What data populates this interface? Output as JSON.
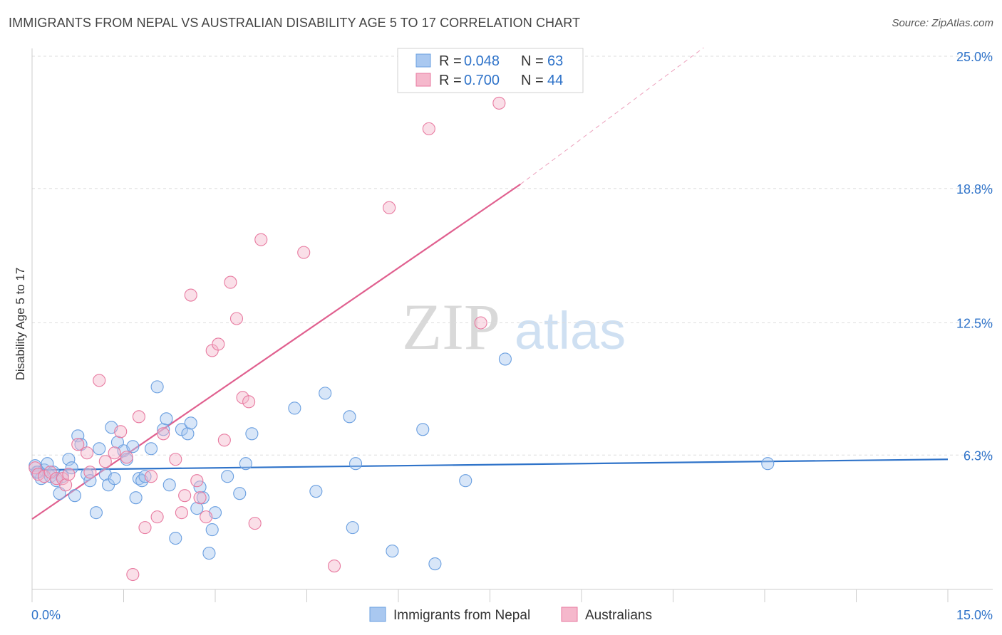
{
  "header": {
    "title": "IMMIGRANTS FROM NEPAL VS AUSTRALIAN DISABILITY AGE 5 TO 17 CORRELATION CHART",
    "source": "Source: ZipAtlas.com"
  },
  "watermark": {
    "zip": "ZIP",
    "atlas": "atlas"
  },
  "chart_data": {
    "type": "scatter",
    "title": "IMMIGRANTS FROM NEPAL VS AUSTRALIAN DISABILITY AGE 5 TO 17 CORRELATION CHART",
    "xlabel": "",
    "ylabel": "Disability Age 5 to 17",
    "xlim": [
      0,
      15
    ],
    "ylim": [
      0,
      25.0
    ],
    "x_tick_labels": [
      "0.0%",
      "15.0%"
    ],
    "y_tick_labels": [
      "6.3%",
      "12.5%",
      "18.8%",
      "25.0%"
    ],
    "y_ticks": [
      6.3,
      12.5,
      18.8,
      25.0
    ],
    "grid": "horizontal dashed",
    "legend_placement": "top-center",
    "legend": [
      {
        "name": "Immigrants from Nepal",
        "r_label": "R = ",
        "r_value": "0.048",
        "n_label": "N = ",
        "n_value": "63",
        "color": "#6a9fe0",
        "fill": "#a9c8f0"
      },
      {
        "name": "Australians",
        "r_label": "R = ",
        "r_value": "0.700",
        "n_label": "N = ",
        "n_value": "44",
        "color": "#e87aa0",
        "fill": "#f5b8cc"
      }
    ],
    "series": [
      {
        "name": "Immigrants from Nepal",
        "color": "#6a9fe0",
        "trend": {
          "x": [
            0,
            15
          ],
          "y": [
            5.6,
            6.1
          ],
          "style": "solid",
          "color": "#2f73c9"
        },
        "points": [
          [
            0.05,
            5.8
          ],
          [
            0.1,
            5.5
          ],
          [
            0.15,
            5.2
          ],
          [
            0.2,
            5.6
          ],
          [
            0.25,
            5.9
          ],
          [
            0.3,
            5.3
          ],
          [
            0.35,
            5.5
          ],
          [
            0.4,
            5.1
          ],
          [
            0.45,
            4.5
          ],
          [
            0.5,
            5.3
          ],
          [
            0.6,
            6.1
          ],
          [
            0.65,
            5.7
          ],
          [
            0.7,
            4.4
          ],
          [
            0.75,
            7.2
          ],
          [
            0.8,
            6.8
          ],
          [
            0.9,
            5.4
          ],
          [
            0.95,
            5.1
          ],
          [
            1.05,
            3.6
          ],
          [
            1.1,
            6.6
          ],
          [
            1.2,
            5.4
          ],
          [
            1.25,
            4.9
          ],
          [
            1.3,
            7.6
          ],
          [
            1.35,
            5.2
          ],
          [
            1.4,
            6.9
          ],
          [
            1.5,
            6.5
          ],
          [
            1.55,
            6.1
          ],
          [
            1.65,
            6.7
          ],
          [
            1.7,
            4.3
          ],
          [
            1.75,
            5.2
          ],
          [
            1.8,
            5.1
          ],
          [
            1.85,
            5.3
          ],
          [
            1.95,
            6.6
          ],
          [
            2.05,
            9.5
          ],
          [
            2.15,
            7.5
          ],
          [
            2.2,
            8.0
          ],
          [
            2.25,
            4.9
          ],
          [
            2.35,
            2.4
          ],
          [
            2.45,
            7.5
          ],
          [
            2.55,
            7.3
          ],
          [
            2.6,
            7.8
          ],
          [
            2.7,
            3.8
          ],
          [
            2.75,
            4.8
          ],
          [
            2.8,
            4.3
          ],
          [
            2.9,
            1.7
          ],
          [
            2.95,
            2.8
          ],
          [
            3.0,
            3.6
          ],
          [
            3.2,
            5.3
          ],
          [
            3.4,
            4.5
          ],
          [
            3.5,
            5.9
          ],
          [
            3.6,
            7.3
          ],
          [
            4.3,
            8.5
          ],
          [
            4.65,
            4.6
          ],
          [
            4.8,
            9.2
          ],
          [
            5.2,
            8.1
          ],
          [
            5.3,
            5.9
          ],
          [
            5.25,
            2.9
          ],
          [
            5.9,
            1.8
          ],
          [
            6.4,
            7.5
          ],
          [
            6.6,
            1.2
          ],
          [
            7.1,
            5.1
          ],
          [
            7.75,
            10.8
          ],
          [
            12.05,
            5.9
          ],
          [
            0.08,
            5.5
          ]
        ]
      },
      {
        "name": "Australians",
        "color": "#e87aa0",
        "trend": {
          "x": [
            0,
            8.0
          ],
          "y": [
            3.3,
            19.0
          ],
          "style": "solid",
          "color": "#e0608f",
          "extension": {
            "x": [
              8.0,
              11.0
            ],
            "y": [
              19.0,
              25.4
            ],
            "style": "dashed"
          }
        },
        "points": [
          [
            0.05,
            5.7
          ],
          [
            0.1,
            5.4
          ],
          [
            0.2,
            5.3
          ],
          [
            0.3,
            5.5
          ],
          [
            0.4,
            5.2
          ],
          [
            0.5,
            5.2
          ],
          [
            0.55,
            4.9
          ],
          [
            0.6,
            5.4
          ],
          [
            0.75,
            6.8
          ],
          [
            0.9,
            6.4
          ],
          [
            0.95,
            5.5
          ],
          [
            1.1,
            9.8
          ],
          [
            1.2,
            6.0
          ],
          [
            1.35,
            6.4
          ],
          [
            1.45,
            7.4
          ],
          [
            1.55,
            6.2
          ],
          [
            1.65,
            0.7
          ],
          [
            1.75,
            8.1
          ],
          [
            1.85,
            2.9
          ],
          [
            1.95,
            5.3
          ],
          [
            2.05,
            3.4
          ],
          [
            2.15,
            7.3
          ],
          [
            2.35,
            6.1
          ],
          [
            2.45,
            3.6
          ],
          [
            2.5,
            4.4
          ],
          [
            2.6,
            13.8
          ],
          [
            2.7,
            5.1
          ],
          [
            2.75,
            4.3
          ],
          [
            2.85,
            3.4
          ],
          [
            2.95,
            11.2
          ],
          [
            3.05,
            11.5
          ],
          [
            3.15,
            7.0
          ],
          [
            3.25,
            14.4
          ],
          [
            3.35,
            12.7
          ],
          [
            3.45,
            9.0
          ],
          [
            3.55,
            8.8
          ],
          [
            3.65,
            3.1
          ],
          [
            3.75,
            16.4
          ],
          [
            4.45,
            15.8
          ],
          [
            4.95,
            1.1
          ],
          [
            5.85,
            17.9
          ],
          [
            6.5,
            21.6
          ],
          [
            7.35,
            12.5
          ],
          [
            7.65,
            22.8
          ]
        ]
      }
    ]
  }
}
